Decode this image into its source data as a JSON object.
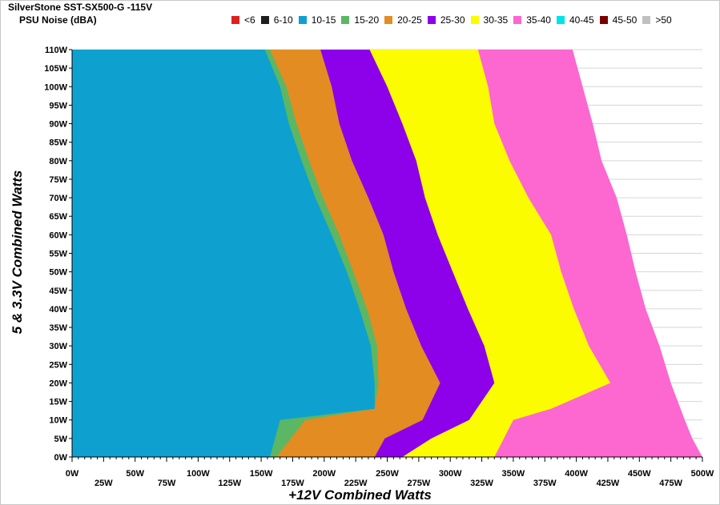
{
  "chart_data": {
    "type": "heatmap",
    "title": "SilverStone SST-SX500-G -115V",
    "subtitle": "PSU Noise (dBA)",
    "xlabel": "+12V Combined Watts",
    "ylabel": "5 & 3.3V Combined Watts",
    "xlim": [
      0,
      500
    ],
    "ylim": [
      0,
      110
    ],
    "x_ticks_upper": [
      "0W",
      "50W",
      "100W",
      "150W",
      "200W",
      "250W",
      "300W",
      "350W",
      "400W",
      "450W",
      "500W"
    ],
    "x_ticks_lower": [
      "25W",
      "75W",
      "125W",
      "175W",
      "225W",
      "275W",
      "325W",
      "375W",
      "425W",
      "475W"
    ],
    "y_ticks": [
      "0W",
      "5W",
      "10W",
      "15W",
      "20W",
      "25W",
      "30W",
      "35W",
      "40W",
      "45W",
      "50W",
      "55W",
      "60W",
      "65W",
      "70W",
      "75W",
      "80W",
      "85W",
      "90W",
      "95W",
      "100W",
      "105W",
      "110W"
    ],
    "legend": [
      {
        "label": "<6",
        "color": "#e02020"
      },
      {
        "label": "6-10",
        "color": "#1e1e1e"
      },
      {
        "label": "10-15",
        "color": "#0ea1cf"
      },
      {
        "label": "15-20",
        "color": "#5bb763"
      },
      {
        "label": "20-25",
        "color": "#e38c22"
      },
      {
        "label": "25-30",
        "color": "#8d00ea"
      },
      {
        "label": "30-35",
        "color": "#fcfc00"
      },
      {
        "label": "35-40",
        "color": "#fc67d0"
      },
      {
        "label": "40-45",
        "color": "#00e3e9"
      },
      {
        "label": "45-50",
        "color": "#7a0000"
      },
      {
        "label": ">50",
        "color": "#c0c0c0"
      }
    ],
    "zones": [
      {
        "range": "10-15",
        "color": "#0ea1cf",
        "upper_x_by_y": [
          {
            "y": 0,
            "x": 157
          },
          {
            "y": 10,
            "x": 165
          },
          {
            "y": 13,
            "x": 240
          },
          {
            "y": 20,
            "x": 240
          },
          {
            "y": 30,
            "x": 237
          },
          {
            "y": 40,
            "x": 228
          },
          {
            "y": 50,
            "x": 218
          },
          {
            "y": 60,
            "x": 206
          },
          {
            "y": 70,
            "x": 193
          },
          {
            "y": 80,
            "x": 182
          },
          {
            "y": 90,
            "x": 172
          },
          {
            "y": 100,
            "x": 165
          },
          {
            "y": 110,
            "x": 153
          }
        ]
      },
      {
        "range": "15-20",
        "color": "#5bb763",
        "upper_x_by_y": [
          {
            "y": 0,
            "x": 162
          },
          {
            "y": 10,
            "x": 185
          },
          {
            "y": 13,
            "x": 240
          },
          {
            "y": 20,
            "x": 243
          },
          {
            "y": 30,
            "x": 242
          },
          {
            "y": 40,
            "x": 234
          },
          {
            "y": 50,
            "x": 223
          },
          {
            "y": 60,
            "x": 212
          },
          {
            "y": 70,
            "x": 199
          },
          {
            "y": 80,
            "x": 188
          },
          {
            "y": 90,
            "x": 178
          },
          {
            "y": 100,
            "x": 170
          },
          {
            "y": 110,
            "x": 157
          }
        ]
      },
      {
        "range": "20-25",
        "color": "#e38c22",
        "upper_x_by_y": [
          {
            "y": 0,
            "x": 240
          },
          {
            "y": 5,
            "x": 248
          },
          {
            "y": 10,
            "x": 278
          },
          {
            "y": 20,
            "x": 292
          },
          {
            "y": 30,
            "x": 277
          },
          {
            "y": 40,
            "x": 265
          },
          {
            "y": 50,
            "x": 255
          },
          {
            "y": 60,
            "x": 247
          },
          {
            "y": 70,
            "x": 235
          },
          {
            "y": 80,
            "x": 222
          },
          {
            "y": 90,
            "x": 212
          },
          {
            "y": 100,
            "x": 206
          },
          {
            "y": 110,
            "x": 197
          }
        ]
      },
      {
        "range": "25-30",
        "color": "#8d00ea",
        "upper_x_by_y": [
          {
            "y": 0,
            "x": 262
          },
          {
            "y": 5,
            "x": 285
          },
          {
            "y": 10,
            "x": 315
          },
          {
            "y": 20,
            "x": 335
          },
          {
            "y": 30,
            "x": 327
          },
          {
            "y": 40,
            "x": 314
          },
          {
            "y": 50,
            "x": 302
          },
          {
            "y": 60,
            "x": 290
          },
          {
            "y": 70,
            "x": 280
          },
          {
            "y": 80,
            "x": 273
          },
          {
            "y": 90,
            "x": 262
          },
          {
            "y": 100,
            "x": 250
          },
          {
            "y": 110,
            "x": 236
          }
        ]
      },
      {
        "range": "30-35",
        "color": "#fcfc00",
        "upper_x_by_y": [
          {
            "y": 0,
            "x": 335
          },
          {
            "y": 10,
            "x": 350
          },
          {
            "y": 13,
            "x": 380
          },
          {
            "y": 20,
            "x": 427
          },
          {
            "y": 30,
            "x": 410
          },
          {
            "y": 40,
            "x": 398
          },
          {
            "y": 50,
            "x": 388
          },
          {
            "y": 60,
            "x": 380
          },
          {
            "y": 70,
            "x": 362
          },
          {
            "y": 80,
            "x": 347
          },
          {
            "y": 90,
            "x": 335
          },
          {
            "y": 100,
            "x": 330
          },
          {
            "y": 110,
            "x": 322
          }
        ]
      },
      {
        "range": "35-40",
        "color": "#fc67d0",
        "upper_x_by_y": [
          {
            "y": 0,
            "x": 500
          },
          {
            "y": 5,
            "x": 492
          },
          {
            "y": 10,
            "x": 486
          },
          {
            "y": 20,
            "x": 475
          },
          {
            "y": 30,
            "x": 466
          },
          {
            "y": 40,
            "x": 455
          },
          {
            "y": 50,
            "x": 447
          },
          {
            "y": 60,
            "x": 440
          },
          {
            "y": 70,
            "x": 432
          },
          {
            "y": 80,
            "x": 420
          },
          {
            "y": 90,
            "x": 413
          },
          {
            "y": 100,
            "x": 405
          },
          {
            "y": 110,
            "x": 397
          }
        ]
      }
    ]
  }
}
